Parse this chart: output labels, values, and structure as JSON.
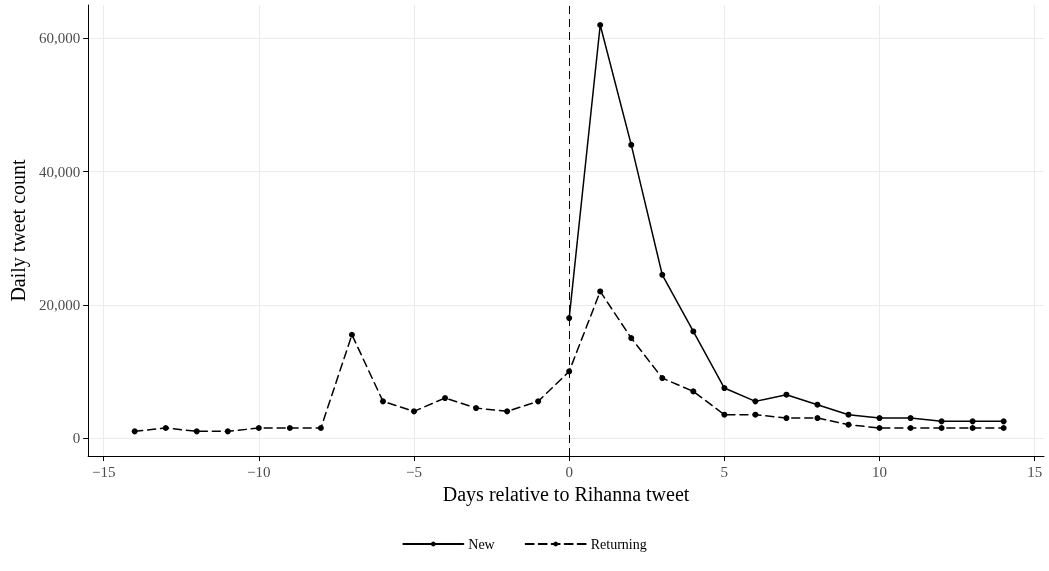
{
  "chart_data": {
    "type": "line",
    "xlabel": "Days relative to Rihanna tweet",
    "ylabel": "Daily tweet count",
    "series": [
      {
        "name": "New",
        "color": "#000000",
        "line_style": "solid",
        "x": [
          0,
          1,
          2,
          3,
          4,
          5,
          6,
          7,
          8,
          9,
          10,
          11,
          12,
          13,
          14
        ],
        "values": [
          18000,
          62000,
          44000,
          24500,
          16000,
          7500,
          5500,
          6500,
          5000,
          3500,
          3000,
          3000,
          2500,
          2500,
          2500
        ]
      },
      {
        "name": "Returning",
        "color": "#000000",
        "line_style": "dashed",
        "x": [
          -14,
          -13,
          -12,
          -11,
          -10,
          -9,
          -8,
          -7,
          -6,
          -5,
          -4,
          -3,
          -2,
          -1,
          0,
          1,
          2,
          3,
          4,
          5,
          6,
          7,
          8,
          9,
          10,
          11,
          12,
          13,
          14
        ],
        "values": [
          1000,
          1500,
          1000,
          1000,
          1500,
          1500,
          1500,
          15500,
          5500,
          4000,
          6000,
          4500,
          4000,
          5500,
          10000,
          22000,
          15000,
          9000,
          7000,
          3500,
          3500,
          3000,
          3000,
          2000,
          1500,
          1500,
          1500,
          1500,
          1500
        ]
      }
    ],
    "xlim": [
      -15.5,
      15.3
    ],
    "ylim": [
      -2700,
      65000
    ],
    "xticks": [
      {
        "value": -15,
        "label": "−15"
      },
      {
        "value": -10,
        "label": "−10"
      },
      {
        "value": -5,
        "label": "−5"
      },
      0,
      5,
      10,
      15
    ],
    "yticks": [
      0,
      {
        "value": 20000,
        "label": "20,000"
      },
      {
        "value": 40000,
        "label": "40,000"
      },
      {
        "value": 60000,
        "label": "60,000"
      }
    ],
    "ref_lines": [
      {
        "axis": "x",
        "value": 0,
        "line_style": "dashed",
        "color": "#000000"
      }
    ],
    "grid": true,
    "legend": "bottom",
    "marker": "circle"
  }
}
